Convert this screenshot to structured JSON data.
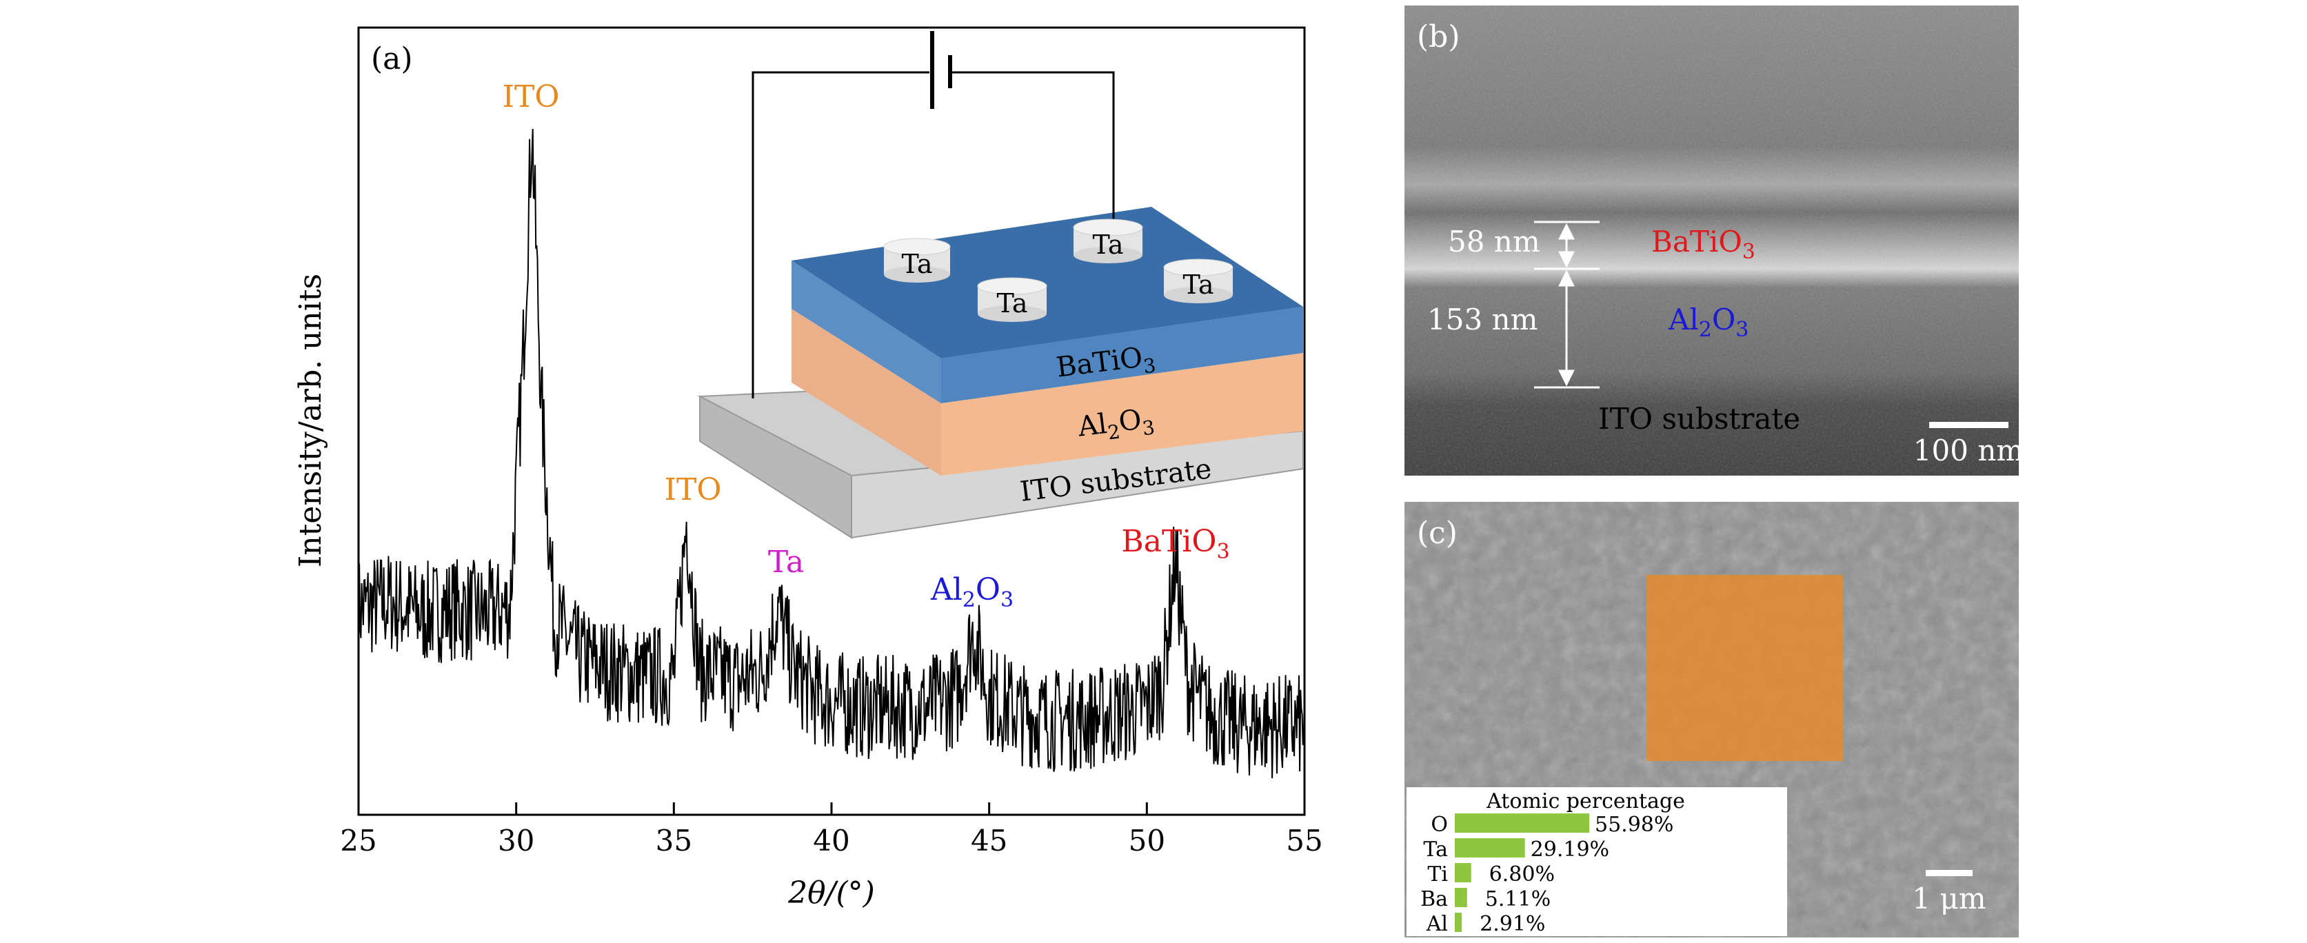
{
  "panel_a": {
    "label": "(a)",
    "xlabel": "2θ/(°)",
    "ylabel": "Intensity/arb. units",
    "peaks": [
      {
        "label": "ITO",
        "x": 30.5,
        "color": "#e8891c"
      },
      {
        "label": "ITO",
        "x": 35.4,
        "color": "#e8891c"
      },
      {
        "label": "Ta",
        "x": 38.3,
        "color": "#d21ec8"
      },
      {
        "label_main": "Al",
        "label_sub": "2",
        "label_tail": "O",
        "label_sub2": "3",
        "x": 44.5,
        "color": "#1a1ad6"
      },
      {
        "label_main": "BaTiO",
        "label_sub": "3",
        "x": 50.9,
        "color": "#e0181c"
      }
    ],
    "inset": {
      "electrodes": [
        "Ta",
        "Ta",
        "Ta",
        "Ta"
      ],
      "layer_top": {
        "main": "BaTiO",
        "sub": "3"
      },
      "layer_mid": {
        "main": "Al",
        "sub": "2",
        "tail": "O",
        "sub2": "3"
      },
      "layer_bottom": "ITO substrate"
    }
  },
  "chart_data": {
    "type": "line",
    "title": "",
    "xlabel": "2θ/(°)",
    "ylabel": "Intensity/arb. units",
    "xlim": [
      25,
      55
    ],
    "xticks": [
      25,
      30,
      35,
      40,
      45,
      50,
      55
    ],
    "y_ticks_shown": false,
    "series": [
      {
        "x": [
          25,
          26,
          27,
          28,
          29,
          29.8,
          30.2,
          30.5,
          30.8,
          31.2,
          32,
          33,
          34,
          35,
          35.4,
          35.8,
          36.5,
          37,
          37.8,
          38.3,
          38.8,
          39.5,
          40,
          41,
          42,
          43,
          44,
          44.5,
          45,
          46,
          47,
          48,
          49,
          50,
          50.5,
          50.9,
          51.3,
          52,
          53,
          54,
          55
        ],
        "y": [
          0.22,
          0.23,
          0.21,
          0.22,
          0.21,
          0.22,
          0.6,
          1.0,
          0.55,
          0.2,
          0.14,
          0.12,
          0.11,
          0.11,
          0.36,
          0.12,
          0.11,
          0.1,
          0.12,
          0.22,
          0.12,
          0.08,
          0.07,
          0.06,
          0.06,
          0.06,
          0.08,
          0.18,
          0.08,
          0.05,
          0.04,
          0.04,
          0.05,
          0.06,
          0.1,
          0.3,
          0.1,
          0.05,
          0.03,
          0.03,
          0.03
        ]
      }
    ]
  },
  "panel_b": {
    "label": "(b)",
    "thickness_top": "58 nm",
    "thickness_bottom": "153 nm",
    "layer_top": {
      "main": "BaTiO",
      "sub": "3"
    },
    "layer_mid": {
      "main": "Al",
      "sub": "2",
      "tail": "O",
      "sub2": "3"
    },
    "layer_bottom": "ITO substrate",
    "scale_bar": "100 nm"
  },
  "panel_c": {
    "label": "(c)",
    "scale_bar": "1 μm",
    "table_title": "Atomic percentage",
    "elements": [
      {
        "name": "O",
        "value": 55.98,
        "text": "55.98%"
      },
      {
        "name": "Ta",
        "value": 29.19,
        "text": "29.19%"
      },
      {
        "name": "Ti",
        "value": 6.8,
        "text": "6.80%"
      },
      {
        "name": "Ba",
        "value": 5.11,
        "text": "5.11%"
      },
      {
        "name": "Al",
        "value": 2.91,
        "text": "2.91%"
      }
    ]
  },
  "colors": {
    "ito": "#e8891c",
    "ta": "#d21ec8",
    "al2o3": "#1a1ad6",
    "batio3": "#e0181c",
    "bar_green": "#8dc63f",
    "eds_square": "#e98a2a"
  }
}
